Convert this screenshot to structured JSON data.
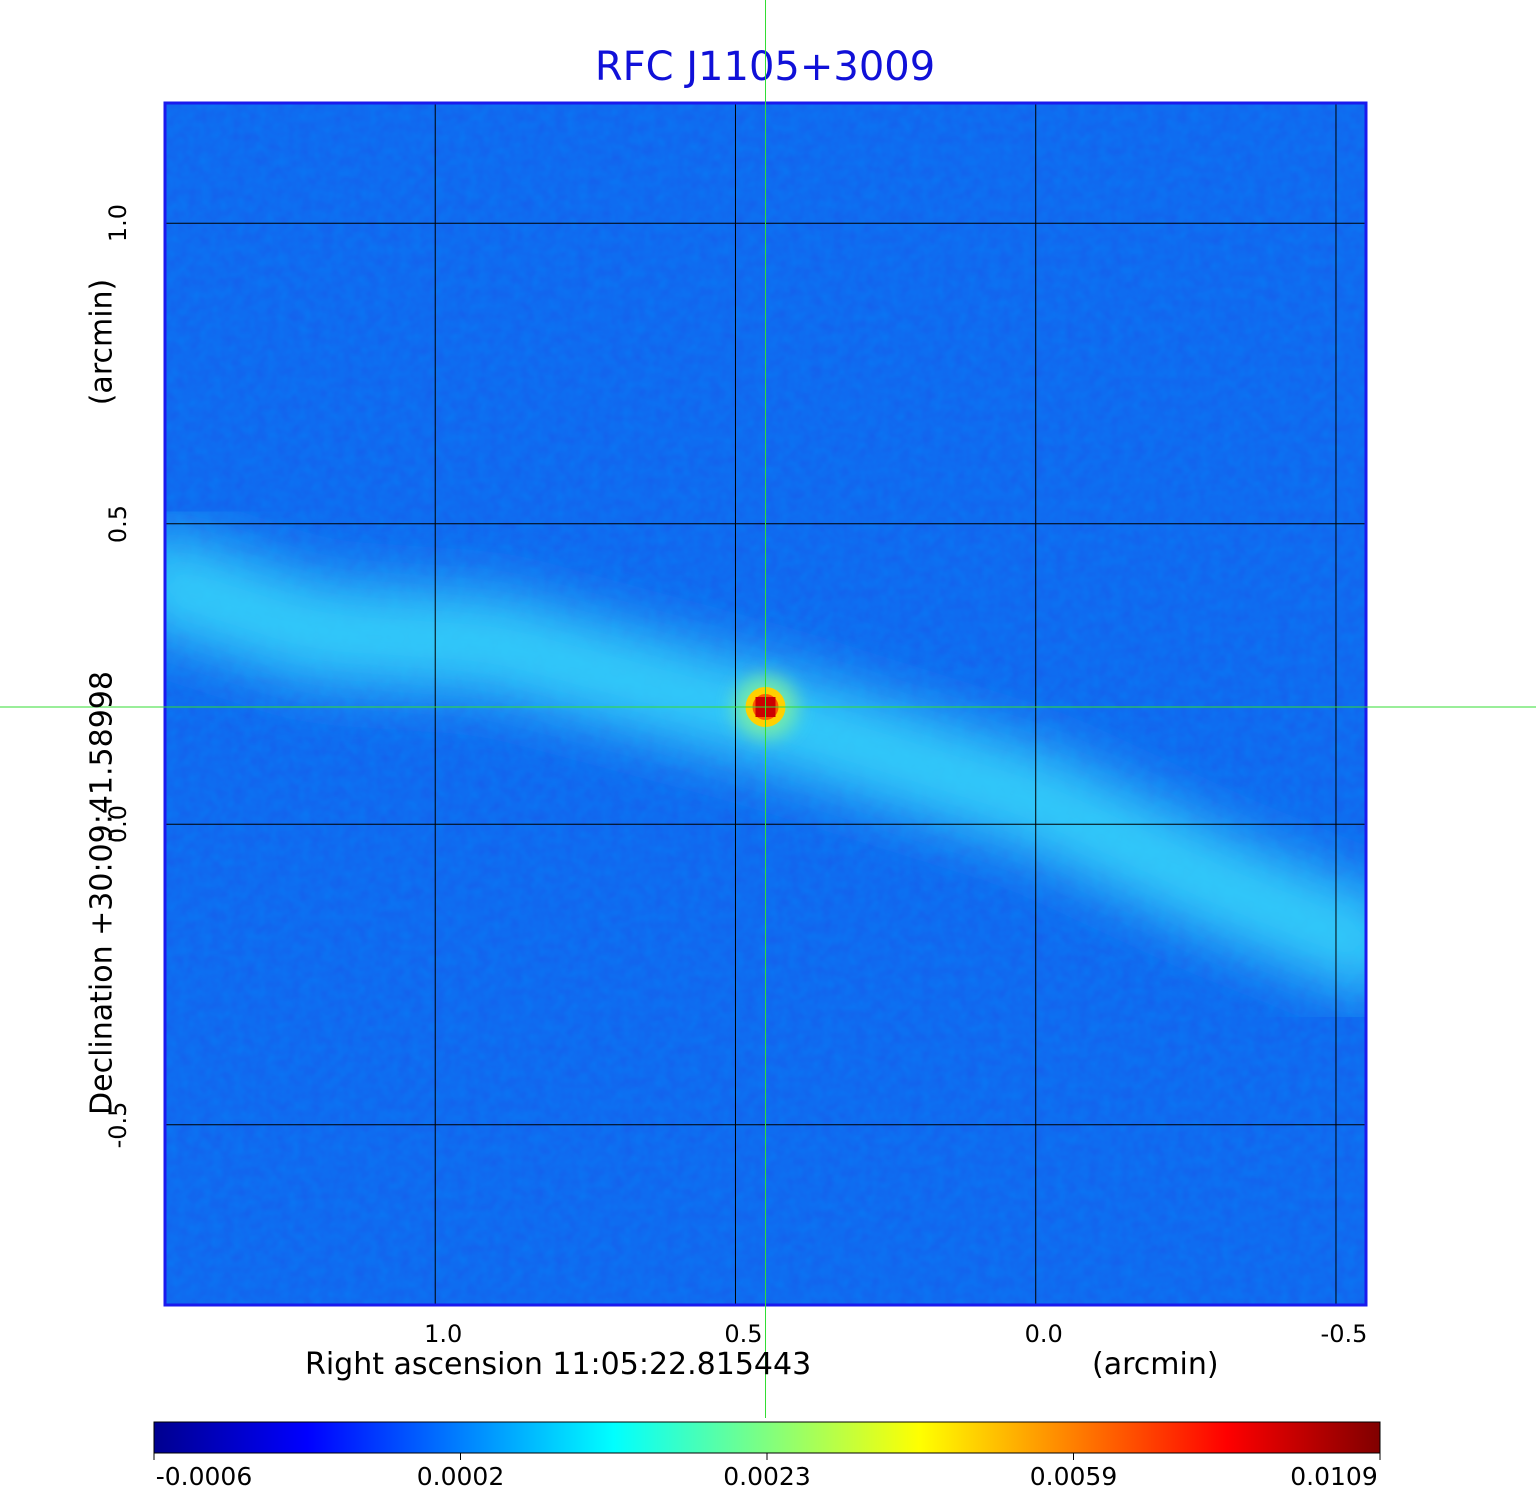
{
  "chart_data": {
    "type": "heatmap",
    "title": "RFC J1105+3009",
    "xlabel": "Right ascension  11:05:22.815443",
    "x_unit": "(arcmin)",
    "ylabel": "Declination  +30:09:41.58998",
    "y_unit": "(arcmin)",
    "x_ticks": [
      "1.0",
      "0.5",
      "0.0",
      "-0.5"
    ],
    "x_tick_values": [
      1.0,
      0.5,
      0.0,
      -0.5
    ],
    "y_ticks": [
      "1.0",
      "0.5",
      "0.0",
      "-0.5"
    ],
    "y_tick_values": [
      1.0,
      0.5,
      0.0,
      -0.5
    ],
    "xlim": [
      1.45,
      -0.55
    ],
    "ylim": [
      -0.8,
      1.2
    ],
    "grid": true,
    "crosshair": {
      "x": 0.45,
      "y": 0.195,
      "color": "#33dd33"
    },
    "colormap": "jet",
    "colorbar_ticks": [
      "-0.0006",
      "0.0002",
      "0.0023",
      "0.0059",
      "0.0109"
    ],
    "colorbar_values": [
      -0.0006,
      0.0002,
      0.0023,
      0.0059,
      0.0109
    ],
    "source_peak": {
      "x": 0.45,
      "y": 0.195,
      "value": 0.0109
    },
    "diffuse_emission": {
      "description": "faint band from upper-left to lower-right",
      "path": [
        [
          1.45,
          0.4
        ],
        [
          1.2,
          0.32
        ],
        [
          0.9,
          0.3
        ],
        [
          0.45,
          0.18
        ],
        [
          0.0,
          0.04
        ],
        [
          -0.3,
          -0.1
        ],
        [
          -0.55,
          -0.2
        ]
      ],
      "level": 0.0004
    }
  },
  "colors": {
    "title": "#1010d8",
    "frame": "#1a1aee",
    "grid": "#000000"
  }
}
